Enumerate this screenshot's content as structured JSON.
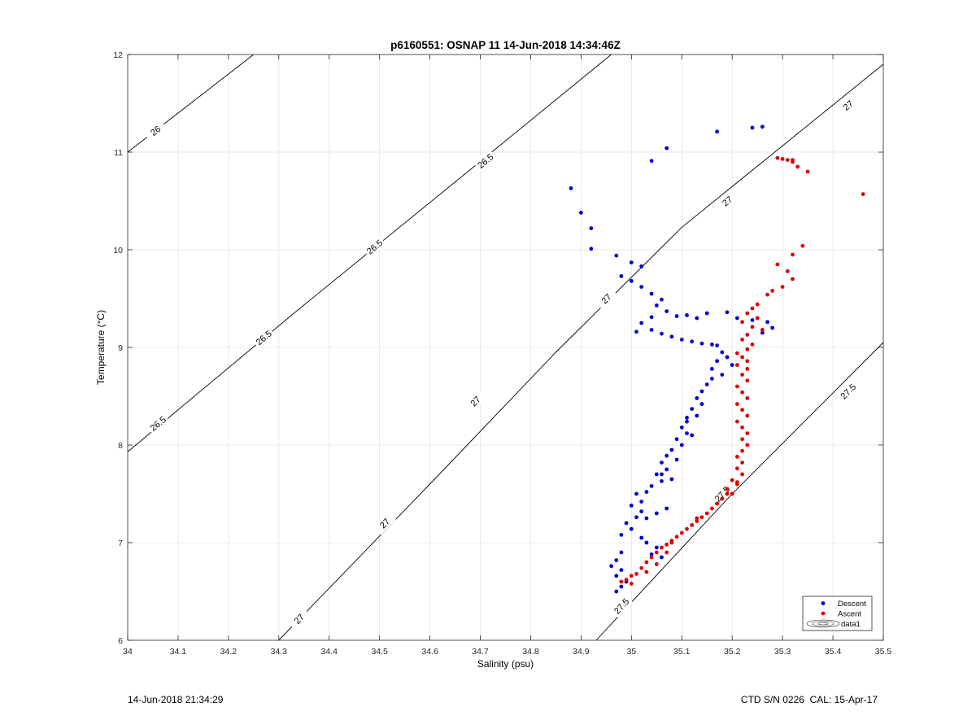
{
  "chart_data": {
    "type": "scatter",
    "title": "p6160551: OSNAP 11 14-Jun-2018 14:34:46Z",
    "xlabel": "Salinity (psu)",
    "ylabel": "Temperature (°C)",
    "xlim": [
      34,
      35.5
    ],
    "ylim": [
      6,
      12
    ],
    "xticks": [
      34,
      34.1,
      34.2,
      34.3,
      34.4,
      34.5,
      34.6,
      34.7,
      34.8,
      34.9,
      35,
      35.1,
      35.2,
      35.3,
      35.4,
      35.5
    ],
    "xtick_labels": [
      "34",
      "34.1",
      "34.2",
      "34.3",
      "34.4",
      "34.5",
      "34.6",
      "34.7",
      "34.8",
      "34.9",
      "35",
      "35.1",
      "35.2",
      "35.3",
      "35.4",
      "35.5"
    ],
    "yticks": [
      6,
      7,
      8,
      9,
      10,
      11,
      12
    ],
    "ytick_labels": [
      "6",
      "7",
      "8",
      "9",
      "10",
      "11",
      "12"
    ],
    "grid": true,
    "legend_position": "bottom-right",
    "legend": [
      "Descent",
      "Ascent",
      "data1"
    ],
    "contour_levels": [
      {
        "label": "26",
        "points": [
          [
            34.0,
            11.0
          ],
          [
            34.25,
            12.0
          ]
        ],
        "label_at": [
          34.055,
          11.22
        ]
      },
      {
        "label": "26.5",
        "points": [
          [
            34.0,
            7.93
          ],
          [
            34.33,
            9.35
          ],
          [
            34.68,
            10.82
          ],
          [
            34.96,
            12.0
          ]
        ],
        "label_at": [
          [
            34.06,
            8.22
          ],
          [
            34.27,
            9.1
          ],
          [
            34.49,
            10.03
          ],
          [
            34.71,
            10.91
          ]
        ]
      },
      {
        "label": "27",
        "points": [
          [
            34.3,
            6.0
          ],
          [
            34.6,
            7.6
          ],
          [
            34.85,
            8.95
          ],
          [
            35.1,
            10.23
          ],
          [
            35.5,
            11.9
          ]
        ],
        "label_at": [
          [
            34.34,
            6.22
          ],
          [
            34.51,
            7.2
          ],
          [
            34.69,
            8.45
          ],
          [
            34.95,
            9.5
          ],
          [
            35.19,
            10.5
          ],
          [
            35.43,
            11.48
          ]
        ]
      },
      {
        "label": "27.5",
        "points": [
          [
            34.93,
            6.0
          ],
          [
            35.2,
            7.5
          ],
          [
            35.5,
            9.05
          ]
        ],
        "label_at": [
          [
            34.98,
            6.35
          ],
          [
            35.18,
            7.5
          ],
          [
            35.43,
            8.55
          ]
        ]
      }
    ],
    "series": [
      {
        "name": "Descent",
        "color": "#0000cc",
        "points": [
          [
            34.88,
            10.63
          ],
          [
            34.9,
            10.38
          ],
          [
            34.92,
            10.22
          ],
          [
            34.92,
            10.01
          ],
          [
            34.97,
            9.94
          ],
          [
            35.0,
            9.87
          ],
          [
            35.02,
            9.83
          ],
          [
            35.04,
            10.91
          ],
          [
            35.07,
            11.04
          ],
          [
            35.17,
            11.21
          ],
          [
            35.24,
            11.25
          ],
          [
            35.26,
            11.26
          ],
          [
            34.98,
            9.73
          ],
          [
            35.0,
            9.68
          ],
          [
            35.02,
            9.62
          ],
          [
            35.04,
            9.55
          ],
          [
            35.06,
            9.49
          ],
          [
            35.05,
            9.43
          ],
          [
            35.07,
            9.37
          ],
          [
            35.09,
            9.32
          ],
          [
            35.11,
            9.33
          ],
          [
            35.13,
            9.3
          ],
          [
            35.15,
            9.35
          ],
          [
            35.04,
            9.31
          ],
          [
            35.02,
            9.25
          ],
          [
            35.04,
            9.18
          ],
          [
            35.06,
            9.14
          ],
          [
            35.08,
            9.11
          ],
          [
            35.1,
            9.08
          ],
          [
            35.12,
            9.06
          ],
          [
            35.14,
            9.04
          ],
          [
            35.16,
            9.03
          ],
          [
            35.17,
            9.02
          ],
          [
            35.01,
            9.16
          ],
          [
            35.19,
            9.36
          ],
          [
            35.21,
            9.3
          ],
          [
            35.24,
            9.28
          ],
          [
            35.27,
            9.26
          ],
          [
            35.28,
            9.2
          ],
          [
            35.26,
            9.15
          ],
          [
            35.18,
            8.95
          ],
          [
            35.19,
            8.9
          ],
          [
            35.17,
            8.86
          ],
          [
            35.2,
            8.82
          ],
          [
            35.16,
            8.78
          ],
          [
            35.18,
            8.72
          ],
          [
            35.16,
            8.68
          ],
          [
            35.15,
            8.62
          ],
          [
            35.14,
            8.55
          ],
          [
            35.13,
            8.48
          ],
          [
            35.14,
            8.42
          ],
          [
            35.12,
            8.37
          ],
          [
            35.13,
            8.3
          ],
          [
            35.11,
            8.24
          ],
          [
            35.1,
            8.18
          ],
          [
            35.11,
            8.12
          ],
          [
            35.09,
            8.06
          ],
          [
            35.1,
            8.0
          ],
          [
            35.08,
            7.95
          ],
          [
            35.07,
            7.89
          ],
          [
            35.06,
            7.82
          ],
          [
            35.07,
            7.75
          ],
          [
            35.05,
            7.7
          ],
          [
            35.06,
            7.63
          ],
          [
            35.04,
            7.58
          ],
          [
            35.03,
            7.52
          ],
          [
            35.01,
            7.5
          ],
          [
            35.02,
            7.42
          ],
          [
            35.0,
            7.38
          ],
          [
            35.02,
            7.32
          ],
          [
            35.01,
            7.26
          ],
          [
            34.99,
            7.2
          ],
          [
            35.0,
            7.14
          ],
          [
            34.98,
            7.08
          ],
          [
            35.02,
            7.05
          ],
          [
            35.03,
            7.0
          ],
          [
            35.05,
            6.95
          ],
          [
            35.04,
            6.88
          ],
          [
            35.06,
            6.85
          ],
          [
            34.98,
            6.9
          ],
          [
            34.97,
            6.82
          ],
          [
            34.96,
            6.76
          ],
          [
            34.98,
            6.72
          ],
          [
            34.97,
            6.66
          ],
          [
            34.99,
            6.6
          ],
          [
            34.98,
            6.55
          ],
          [
            34.97,
            6.5
          ],
          [
            35.05,
            7.3
          ],
          [
            35.07,
            7.35
          ],
          [
            35.03,
            7.25
          ],
          [
            35.08,
            7.65
          ],
          [
            35.06,
            7.7
          ],
          [
            35.09,
            7.85
          ],
          [
            35.12,
            8.1
          ],
          [
            35.11,
            8.28
          ]
        ]
      },
      {
        "name": "Ascent",
        "color": "#dd0000",
        "points": [
          [
            35.29,
            10.94
          ],
          [
            35.3,
            10.93
          ],
          [
            35.31,
            10.92
          ],
          [
            35.32,
            10.92
          ],
          [
            35.32,
            10.9
          ],
          [
            35.33,
            10.85
          ],
          [
            35.35,
            10.8
          ],
          [
            35.46,
            10.57
          ],
          [
            35.34,
            10.04
          ],
          [
            35.32,
            9.95
          ],
          [
            35.29,
            9.85
          ],
          [
            35.31,
            9.78
          ],
          [
            35.32,
            9.7
          ],
          [
            35.3,
            9.62
          ],
          [
            35.28,
            9.58
          ],
          [
            35.27,
            9.54
          ],
          [
            35.25,
            9.44
          ],
          [
            35.24,
            9.4
          ],
          [
            35.23,
            9.35
          ],
          [
            35.25,
            9.3
          ],
          [
            35.22,
            9.26
          ],
          [
            35.24,
            9.21
          ],
          [
            35.26,
            9.18
          ],
          [
            35.23,
            9.13
          ],
          [
            35.22,
            9.08
          ],
          [
            35.24,
            9.03
          ],
          [
            35.23,
            8.98
          ],
          [
            35.21,
            8.94
          ],
          [
            35.22,
            8.9
          ],
          [
            35.23,
            8.86
          ],
          [
            35.21,
            8.82
          ],
          [
            35.23,
            8.78
          ],
          [
            35.22,
            8.72
          ],
          [
            35.23,
            8.66
          ],
          [
            35.21,
            8.6
          ],
          [
            35.22,
            8.54
          ],
          [
            35.23,
            8.48
          ],
          [
            35.21,
            8.42
          ],
          [
            35.22,
            8.36
          ],
          [
            35.23,
            8.3
          ],
          [
            35.21,
            8.24
          ],
          [
            35.22,
            8.18
          ],
          [
            35.23,
            8.12
          ],
          [
            35.22,
            8.06
          ],
          [
            35.23,
            8.0
          ],
          [
            35.22,
            7.94
          ],
          [
            35.21,
            7.88
          ],
          [
            35.22,
            7.82
          ],
          [
            35.21,
            7.76
          ],
          [
            35.22,
            7.7
          ],
          [
            35.2,
            7.64
          ],
          [
            35.21,
            7.6
          ],
          [
            35.19,
            7.55
          ],
          [
            35.2,
            7.5
          ],
          [
            35.18,
            7.45
          ],
          [
            35.17,
            7.4
          ],
          [
            35.16,
            7.35
          ],
          [
            35.15,
            7.3
          ],
          [
            35.14,
            7.26
          ],
          [
            35.13,
            7.22
          ],
          [
            35.12,
            7.18
          ],
          [
            35.11,
            7.14
          ],
          [
            35.1,
            7.1
          ],
          [
            35.09,
            7.06
          ],
          [
            35.08,
            7.02
          ],
          [
            35.07,
            6.98
          ],
          [
            35.06,
            6.95
          ],
          [
            35.05,
            6.9
          ],
          [
            35.04,
            6.85
          ],
          [
            35.03,
            6.8
          ],
          [
            35.02,
            6.74
          ],
          [
            35.01,
            6.68
          ],
          [
            35.0,
            6.66
          ],
          [
            34.99,
            6.62
          ],
          [
            34.98,
            6.6
          ],
          [
            35.0,
            6.58
          ],
          [
            35.03,
            6.7
          ],
          [
            35.05,
            6.78
          ],
          [
            35.07,
            6.9
          ],
          [
            35.08,
            7.0
          ],
          [
            35.13,
            7.25
          ],
          [
            35.17,
            7.4
          ],
          [
            35.19,
            7.5
          ],
          [
            35.21,
            7.62
          ]
        ]
      }
    ]
  },
  "footer": {
    "left": "14-Jun-2018 21:34:29",
    "right": "CTD S/N 0226  CAL: 15-Apr-17"
  }
}
